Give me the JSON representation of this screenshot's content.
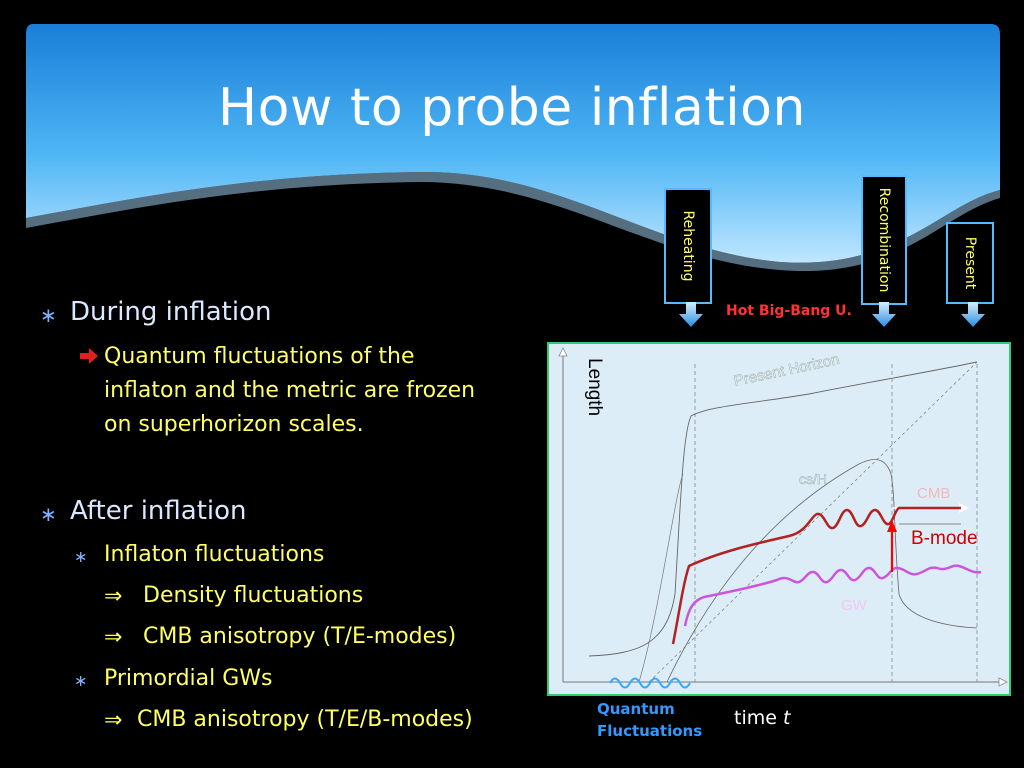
{
  "title": "How to probe inflation",
  "bullets": {
    "during": "During inflation",
    "during_sub": [
      "Quantum fluctuations of the",
      "inflaton and the metric are frozen",
      "on superhorizon scales."
    ],
    "after": "After inflation",
    "inflaton": "Inflaton fluctuations",
    "density": "Density fluctuations",
    "cmb_te": "CMB anisotropy (T/E-modes)",
    "gws": "Primordial GWs",
    "cmb_teb": "CMB anisotropy (T/E/B-modes)",
    "implies": "⇒"
  },
  "epochs": {
    "reheating": "Reheating",
    "recombination": "Recombination",
    "present": "Present",
    "hot_big_bang": "Hot Big-Bang U."
  },
  "diagram": {
    "length": "Length",
    "present_horizon": "Present Horizon",
    "sound_horizon": "cs/H",
    "cmb": "CMB",
    "bmode": "B-mode",
    "gw": "GW",
    "time_prefix": "time ",
    "time_var": "t",
    "quantum": "Quantum",
    "fluctuations": "Fluctuations"
  },
  "colors": {
    "title": "#ffffff",
    "bullet_l1": "#dce8ff",
    "bullet_l2": "#ffff66",
    "epoch_box_border": "#55bbff",
    "panel_bg": "#dcedf8",
    "panel_border": "#2ecc71",
    "density_curve": "#b22222",
    "gw_curve": "#cc55dd",
    "bmode_arrow": "#ff0000",
    "quantum_wave": "#33aaff"
  }
}
